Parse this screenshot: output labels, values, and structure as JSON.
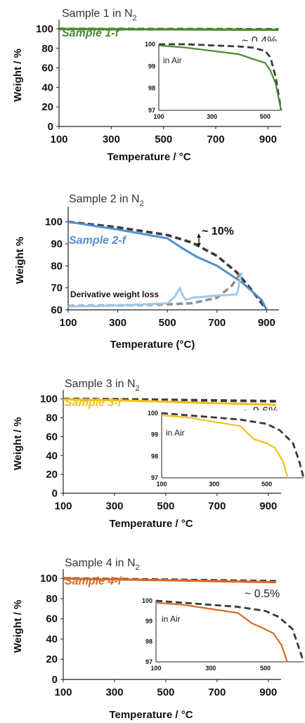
{
  "chart_data": [
    {
      "type": "line",
      "ylabel": "Weight / %",
      "xlabel": "Temperature / °C",
      "xlim": [
        100,
        950
      ],
      "ylim": [
        0,
        105
      ],
      "x_ticks": [
        "100",
        "300",
        "500",
        "700",
        "900"
      ],
      "y_ticks": [
        "0",
        "20",
        "40",
        "60",
        "80",
        "100"
      ],
      "series": [
        {
          "name": "Sample 1 in N2",
          "color": "#3a3a3a",
          "style": "dashed",
          "x": [
            100,
            300,
            500,
            700,
            900,
            940
          ],
          "y": [
            99.8,
            99.7,
            99.6,
            99.5,
            99.4,
            99.3
          ]
        },
        {
          "name": "Sample 1-f",
          "color": "#4a8a30",
          "style": "solid",
          "x": [
            100,
            300,
            500,
            700,
            900,
            940
          ],
          "y": [
            99.8,
            99.6,
            99.4,
            99.2,
            99.0,
            98.9
          ]
        }
      ],
      "title_parts": {
        "main": "Sample 1 in N",
        "sub": "2"
      },
      "f_label": "Sample 1-f",
      "annotation": "~ 0.4%",
      "inset": {
        "label": "in Air",
        "xlim": [
          100,
          560
        ],
        "ylim": [
          97,
          100
        ],
        "x_ticks": [
          "100",
          "300",
          "500"
        ],
        "y_ticks": [
          "97",
          "98",
          "99",
          "100"
        ],
        "series": [
          {
            "name": "Sample 1 in N2",
            "color": "#3a3a3a",
            "style": "dashed",
            "x": [
              100,
              200,
              300,
              400,
              450,
              500,
              520,
              540,
              560
            ],
            "y": [
              100.0,
              100.0,
              99.95,
              99.9,
              99.85,
              99.7,
              99.4,
              98.5,
              97.0
            ]
          },
          {
            "name": "Sample 1-f",
            "color": "#4a8a30",
            "style": "solid",
            "x": [
              100,
              200,
              300,
              400,
              450,
              500,
              520,
              540,
              560
            ],
            "y": [
              99.95,
              99.85,
              99.7,
              99.55,
              99.35,
              99.15,
              98.8,
              98.2,
              97.0
            ]
          }
        ]
      }
    },
    {
      "type": "line",
      "ylabel": "Weight %",
      "xlabel": "Temperature (°C)",
      "xlim": [
        100,
        950
      ],
      "ylim": [
        60,
        105
      ],
      "x_ticks": [
        "100",
        "300",
        "500",
        "700",
        "900"
      ],
      "y_ticks": [
        "60",
        "70",
        "80",
        "90",
        "100"
      ],
      "series": [
        {
          "name": "Sample 2 in N2",
          "color": "#3a3a3a",
          "style": "dashed",
          "x": [
            100,
            300,
            500,
            600,
            700,
            780,
            840,
            880,
            900
          ],
          "y": [
            100.0,
            97.5,
            94.0,
            90.5,
            84.5,
            77.0,
            69.0,
            63.0,
            60.0
          ]
        },
        {
          "name": "Sample 2-f",
          "color": "#4f8fd0",
          "style": "solid",
          "x": [
            100,
            300,
            500,
            560,
            620,
            700,
            800,
            880,
            900
          ],
          "y": [
            100.0,
            96.5,
            92.5,
            88.0,
            84.0,
            80.0,
            72.5,
            64.5,
            60.0
          ]
        },
        {
          "name": "Derivative weight loss (N2)",
          "color": "#8f8f8f",
          "style": "dashed",
          "x": [
            100,
            300,
            500,
            600,
            700,
            760,
            800
          ],
          "y": [
            61.8,
            62.0,
            62.5,
            63.0,
            65.5,
            71.0,
            77.5
          ]
        },
        {
          "name": "Derivative weight loss (f)",
          "color": "#9ecbee",
          "style": "solid",
          "x": [
            100,
            300,
            500,
            530,
            550,
            560,
            575,
            600,
            700,
            780,
            800
          ],
          "y": [
            61.5,
            62.0,
            63.0,
            66.0,
            70.0,
            67.0,
            64.5,
            65.5,
            66.5,
            67.0,
            77.0
          ]
        }
      ],
      "title_parts": {
        "main": "Sample 2 in N",
        "sub": "2"
      },
      "f_label": "Sample 2-f",
      "annotation": "~ 10%",
      "derivative_label": "Derivative weight loss"
    },
    {
      "type": "line",
      "ylabel": "Weight / %",
      "xlabel": "Temperature / °C",
      "xlim": [
        100,
        950
      ],
      "ylim": [
        0,
        105
      ],
      "x_ticks": [
        "100",
        "300",
        "500",
        "700",
        "900"
      ],
      "y_ticks": [
        "0",
        "20",
        "40",
        "60",
        "80",
        "100"
      ],
      "series": [
        {
          "name": "Sample 3 in N2",
          "color": "#3a3a3a",
          "style": "dashed",
          "x": [
            100,
            300,
            500,
            700,
            900,
            930
          ],
          "y": [
            99.9,
            99.6,
            99.0,
            98.3,
            97.6,
            97.4
          ]
        },
        {
          "name": "Sample 3-f",
          "color": "#f2c01b",
          "style": "solid",
          "x": [
            100,
            300,
            500,
            700,
            900,
            930
          ],
          "y": [
            99.6,
            98.5,
            97.0,
            95.5,
            94.0,
            93.6
          ]
        }
      ],
      "title_parts": {
        "main": "Sample 3 in N",
        "sub": "2"
      },
      "f_label": "Sample 3-f",
      "annotation": "~ 0.6%",
      "inset": {
        "label": "in Air",
        "xlim": [
          100,
          640
        ],
        "ylim": [
          97,
          100
        ],
        "x_ticks": [
          "100",
          "300",
          "500"
        ],
        "y_ticks": [
          "97",
          "98",
          "99",
          "100"
        ],
        "series": [
          {
            "name": "Sample 3 in N2",
            "color": "#3a3a3a",
            "style": "dashed",
            "x": [
              100,
              200,
              300,
              400,
              500,
              550,
              600,
              625,
              640
            ],
            "y": [
              100.0,
              99.9,
              99.8,
              99.7,
              99.5,
              99.2,
              98.6,
              97.7,
              97.0
            ]
          },
          {
            "name": "Sample 3-f",
            "color": "#f2c01b",
            "style": "solid",
            "x": [
              100,
              200,
              300,
              400,
              450,
              500,
              530,
              560,
              580
            ],
            "y": [
              99.9,
              99.8,
              99.6,
              99.4,
              98.8,
              98.6,
              98.4,
              97.8,
              97.0
            ]
          }
        ]
      }
    },
    {
      "type": "line",
      "ylabel": "Weight / %",
      "xlabel": "Temperature / °C",
      "xlim": [
        100,
        950
      ],
      "ylim": [
        0,
        105
      ],
      "x_ticks": [
        "100",
        "300",
        "500",
        "700",
        "900"
      ],
      "y_ticks": [
        "0",
        "20",
        "40",
        "60",
        "80",
        "100"
      ],
      "series": [
        {
          "name": "Sample 4 in N2",
          "color": "#3a3a3a",
          "style": "dashed",
          "x": [
            100,
            300,
            500,
            700,
            900,
            930
          ],
          "y": [
            99.9,
            99.3,
            98.7,
            98.0,
            97.3,
            97.1
          ]
        },
        {
          "name": "Sample 4-f",
          "color": "#d86a25",
          "style": "solid",
          "x": [
            100,
            300,
            500,
            700,
            900,
            930
          ],
          "y": [
            99.8,
            99.0,
            98.2,
            97.3,
            96.4,
            96.2
          ]
        }
      ],
      "title_parts": {
        "main": "Sample 4 in N",
        "sub": "2"
      },
      "f_label": "Sample 4-f",
      "annotation": "~ 0.5%",
      "inset": {
        "label": "in Air",
        "xlim": [
          100,
          640
        ],
        "ylim": [
          97,
          100
        ],
        "x_ticks": [
          "100",
          "300",
          "500"
        ],
        "y_ticks": [
          "97",
          "98",
          "99",
          "100"
        ],
        "series": [
          {
            "name": "Sample 4 in N2",
            "color": "#3a3a3a",
            "style": "dashed",
            "x": [
              100,
              200,
              300,
              400,
              500,
              550,
              600,
              625,
              640
            ],
            "y": [
              100.0,
              99.9,
              99.8,
              99.7,
              99.5,
              99.2,
              98.6,
              97.6,
              97.0
            ]
          },
          {
            "name": "Sample 4-f",
            "color": "#d86a25",
            "style": "solid",
            "x": [
              100,
              200,
              300,
              400,
              450,
              500,
              530,
              560,
              580
            ],
            "y": [
              99.9,
              99.8,
              99.6,
              99.4,
              98.9,
              98.6,
              98.4,
              97.8,
              97.0
            ]
          }
        ]
      }
    }
  ]
}
